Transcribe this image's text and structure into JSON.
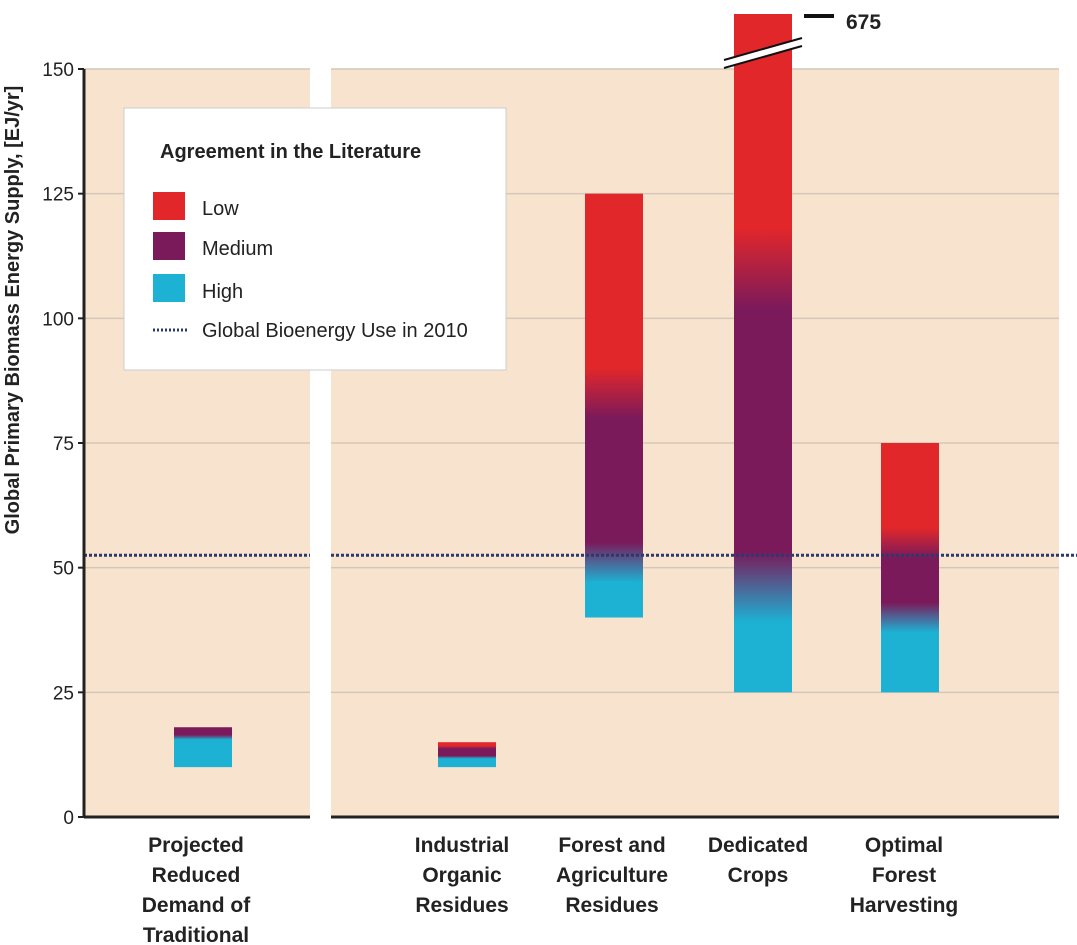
{
  "chart_data": {
    "type": "bar",
    "ylabel": "Global Primary Biomass Energy Supply, [EJ/yr]",
    "ylim": [
      0,
      150
    ],
    "yticks": [
      0,
      25,
      50,
      75,
      100,
      125,
      150
    ],
    "grid": true,
    "categories": [
      "Projected Reduced Demand of Traditional",
      "Industrial Organic Residues",
      "Forest and Agriculture Residues",
      "Dedicated Crops",
      "Optimal Forest Harvesting"
    ],
    "category_lines": [
      [
        "Projected",
        "Reduced",
        "Demand of",
        "Traditional"
      ],
      [
        "Industrial",
        "Organic",
        "Residues"
      ],
      [
        "Forest and",
        "Agriculture",
        "Residues"
      ],
      [
        "Dedicated",
        "Crops"
      ],
      [
        "Optimal",
        "Forest",
        "Harvesting"
      ]
    ],
    "ranges": [
      {
        "low": 10,
        "high": 18,
        "bands": [
          {
            "from": 10,
            "to": 16,
            "agreement": "High"
          },
          {
            "from": 16,
            "to": 18,
            "agreement": "Medium"
          }
        ]
      },
      {
        "low": 10,
        "high": 15,
        "bands": [
          {
            "from": 10,
            "to": 12,
            "agreement": "High"
          },
          {
            "from": 12,
            "to": 14,
            "agreement": "Medium"
          },
          {
            "from": 14,
            "to": 15,
            "agreement": "Low"
          }
        ]
      },
      {
        "low": 40,
        "high": 125,
        "bands": [
          {
            "from": 40,
            "to": 50,
            "agreement": "High"
          },
          {
            "from": 50,
            "to": 85,
            "agreement": "Medium"
          },
          {
            "from": 85,
            "to": 125,
            "agreement": "Low"
          }
        ]
      },
      {
        "low": 25,
        "high": 675,
        "bands": [
          {
            "from": 25,
            "to": 45,
            "agreement": "High"
          },
          {
            "from": 45,
            "to": 110,
            "agreement": "Medium"
          },
          {
            "from": 110,
            "to": 675,
            "agreement": "Low"
          }
        ]
      },
      {
        "low": 25,
        "high": 75,
        "bands": [
          {
            "from": 25,
            "to": 40,
            "agreement": "High"
          },
          {
            "from": 40,
            "to": 55,
            "agreement": "Medium"
          },
          {
            "from": 55,
            "to": 75,
            "agreement": "Low"
          }
        ]
      }
    ],
    "reference_line": {
      "label": "Global Bioenergy Use in 2010",
      "value": 52.5
    },
    "annotation": {
      "text": "675"
    },
    "legend": {
      "title": "Agreement in the Literature",
      "placement": "top-left",
      "items": [
        {
          "label": "Low",
          "color": "#e2272b"
        },
        {
          "label": "Medium",
          "color": "#7b1a5a"
        },
        {
          "label": "High",
          "color": "#1db2d4"
        },
        {
          "label": "Global Bioenergy Use in 2010",
          "color": "#2b3a6e",
          "style": "dotted"
        }
      ]
    },
    "colors": {
      "background": "#f8e3cf",
      "grid": "#d4c7b7",
      "axis": "#222222",
      "low": "#e2272b",
      "medium": "#7b1a5a",
      "high": "#1db2d4",
      "reference": "#2b3a6e"
    }
  }
}
